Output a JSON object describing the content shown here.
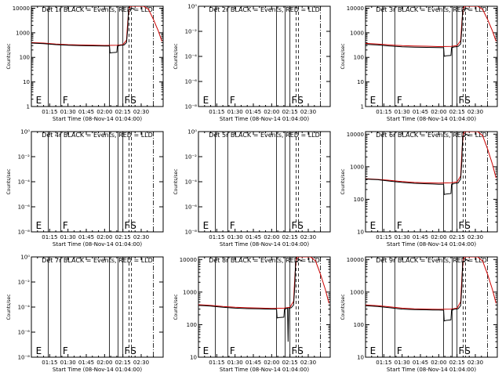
{
  "chart_data": {
    "type": "line",
    "x_ticks": [
      "01:15",
      "01:30",
      "01:45",
      "02:00",
      "02:15",
      "02:30"
    ],
    "x_tick_minutes": [
      15,
      30,
      45,
      60,
      75,
      90
    ],
    "x_range_minutes": [
      0,
      108
    ],
    "xlabel": "Start Time (08-Nov-14 01:04:00)",
    "ylabel": "Counts/sec",
    "series_colors": {
      "events": "#000000",
      "lld": "#cc0000"
    },
    "marker_lines_minutes": {
      "solid": [
        13.8,
        24,
        64,
        71,
        75
      ],
      "dashed": [
        80,
        82
      ],
      "dashdot": [
        100
      ]
    },
    "marker_labels": [
      {
        "text": "E",
        "x_minutes": 3
      },
      {
        "text": "F",
        "x_minutes": 25
      },
      {
        "text": "F",
        "x_minutes": 75.5
      },
      {
        "text": "S",
        "x_minutes": 80.5
      }
    ],
    "panels": [
      {
        "title": "Det 1r BLACK = Events, RED = LLD",
        "has_data": true,
        "yticks": [
          "1",
          "10",
          "100",
          "1000",
          "10000"
        ],
        "ytick_values": [
          1,
          10,
          100,
          1000,
          10000
        ],
        "ylim": [
          1,
          12000
        ],
        "events": {
          "x": [
            0,
            5,
            10,
            20,
            30,
            40,
            50,
            55,
            60,
            64,
            64.5,
            66,
            70,
            70.5,
            71,
            71.5,
            72,
            74,
            76,
            78,
            79,
            79.5,
            80,
            81,
            82,
            83,
            84,
            85
          ],
          "y": [
            380,
            370,
            360,
            330,
            310,
            300,
            295,
            292,
            290,
            288,
            150,
            155,
            160,
            290,
            300,
            290,
            305,
            310,
            320,
            400,
            1500,
            8000,
            9000,
            8500,
            9500,
            10000,
            9000,
            9500
          ]
        },
        "lld": {
          "x": [
            0,
            10,
            20,
            30,
            40,
            50,
            60,
            70,
            75,
            78,
            79,
            80,
            81,
            84,
            88,
            92,
            96,
            100,
            104,
            107
          ],
          "y": [
            400,
            380,
            350,
            330,
            320,
            315,
            305,
            310,
            330,
            500,
            3000,
            9000,
            12000,
            12000,
            12000,
            12000,
            9000,
            3500,
            1200,
            450
          ]
        },
        "markers": [
          "E",
          "F",
          "F",
          "S"
        ]
      },
      {
        "title": "Det 2r BLACK = Events, RED = LLD",
        "has_data": false,
        "yticks": [
          "10⁰",
          "10⁻²",
          "10⁻⁴",
          "10⁻⁶",
          "10⁻⁸"
        ],
        "ytick_values": [
          1,
          0.01,
          0.0001,
          1e-06,
          1e-08
        ],
        "ylim": [
          1e-08,
          1
        ],
        "markers": [
          "E",
          "F",
          "F",
          "S"
        ]
      },
      {
        "title": "Det 3r BLACK = Events, RED = LLD",
        "has_data": true,
        "yticks": [
          "1",
          "10",
          "100",
          "1000",
          "10000"
        ],
        "ytick_values": [
          1,
          10,
          100,
          1000,
          10000
        ],
        "ylim": [
          1,
          12000
        ],
        "events": {
          "x": [
            0,
            5,
            10,
            20,
            30,
            40,
            50,
            55,
            60,
            64,
            64.5,
            66,
            70,
            70.5,
            71,
            71.5,
            72,
            74,
            76,
            78,
            79,
            79.5,
            80,
            81,
            82,
            83,
            84,
            85
          ],
          "y": [
            340,
            330,
            320,
            290,
            270,
            260,
            255,
            252,
            250,
            248,
            110,
            115,
            120,
            250,
            260,
            250,
            265,
            270,
            280,
            350,
            1500,
            8000,
            9000,
            8500,
            9500,
            10000,
            9000,
            9500
          ]
        },
        "lld": {
          "x": [
            0,
            10,
            20,
            30,
            40,
            50,
            60,
            70,
            75,
            78,
            79,
            80,
            81,
            84,
            88,
            92,
            96,
            100,
            104,
            107
          ],
          "y": [
            370,
            350,
            320,
            300,
            290,
            285,
            275,
            280,
            300,
            480,
            3000,
            9000,
            12000,
            12000,
            12000,
            12000,
            9000,
            3500,
            1200,
            450
          ]
        },
        "markers": [
          "E",
          "F",
          "F",
          "S"
        ]
      },
      {
        "title": "Det 4r BLACK = Events, RED = LLD",
        "has_data": false,
        "yticks": [
          "10⁰",
          "10⁻²",
          "10⁻⁴",
          "10⁻⁶",
          "10⁻⁸"
        ],
        "ytick_values": [
          1,
          0.01,
          0.0001,
          1e-06,
          1e-08
        ],
        "ylim": [
          1e-08,
          1
        ],
        "markers": [
          "E",
          "F",
          "F",
          "S"
        ]
      },
      {
        "title": "Det 5r BLACK = Events, RED = LLD",
        "has_data": false,
        "yticks": [
          "10⁰",
          "10⁻²",
          "10⁻⁴",
          "10⁻⁶",
          "10⁻⁸"
        ],
        "ytick_values": [
          1,
          0.01,
          0.0001,
          1e-06,
          1e-08
        ],
        "ylim": [
          1e-08,
          1
        ],
        "markers": [
          "E",
          "F",
          "F",
          "S"
        ]
      },
      {
        "title": "Det 6r BLACK = Events, RED = LLD",
        "has_data": true,
        "yticks": [
          "10",
          "100",
          "1000",
          "10000"
        ],
        "ytick_values": [
          10,
          100,
          1000,
          10000
        ],
        "ylim": [
          10,
          12000
        ],
        "events": {
          "x": [
            0,
            5,
            10,
            20,
            30,
            40,
            50,
            55,
            60,
            64,
            64.5,
            66,
            70,
            70.5,
            71,
            71.5,
            72,
            74,
            76,
            78,
            79,
            79.5,
            80,
            81,
            82,
            83,
            84,
            85
          ],
          "y": [
            420,
            410,
            400,
            360,
            330,
            310,
            300,
            295,
            290,
            288,
            140,
            145,
            150,
            290,
            300,
            290,
            305,
            310,
            320,
            420,
            1500,
            8000,
            9000,
            8500,
            9500,
            10000,
            9000,
            9500
          ]
        },
        "lld": {
          "x": [
            0,
            10,
            20,
            30,
            40,
            50,
            60,
            70,
            75,
            78,
            79,
            80,
            81,
            84,
            88,
            92,
            96,
            100,
            104,
            107
          ],
          "y": [
            430,
            410,
            380,
            350,
            330,
            320,
            315,
            320,
            340,
            520,
            3000,
            9000,
            12000,
            12000,
            12000,
            12000,
            9000,
            3500,
            1200,
            450
          ]
        },
        "markers": [
          "E",
          "F",
          "F",
          "S"
        ]
      },
      {
        "title": "Det 7r BLACK = Events, RED = LLD",
        "has_data": false,
        "yticks": [
          "10⁰",
          "10⁻²",
          "10⁻⁴",
          "10⁻⁶",
          "10⁻⁸"
        ],
        "ytick_values": [
          1,
          0.01,
          0.0001,
          1e-06,
          1e-08
        ],
        "ylim": [
          1e-08,
          1
        ],
        "markers": [
          "E",
          "F",
          "F",
          "S"
        ]
      },
      {
        "title": "Det 8r BLACK = Events, RED = LLD",
        "has_data": true,
        "yticks": [
          "10",
          "100",
          "1000",
          "10000"
        ],
        "ytick_values": [
          10,
          100,
          1000,
          10000
        ],
        "ylim": [
          10,
          12000
        ],
        "events": {
          "x": [
            0,
            5,
            10,
            20,
            30,
            40,
            50,
            55,
            60,
            64,
            64.5,
            66,
            70,
            70.5,
            71,
            71.5,
            72,
            73,
            73.5,
            74,
            76,
            78,
            79,
            79.5,
            80,
            81,
            82,
            83,
            84,
            85
          ],
          "y": [
            390,
            380,
            370,
            340,
            320,
            310,
            305,
            302,
            300,
            298,
            160,
            165,
            170,
            300,
            310,
            300,
            315,
            320,
            30,
            320,
            330,
            400,
            1500,
            8000,
            9000,
            8500,
            9500,
            10000,
            9000,
            9500
          ]
        },
        "lld": {
          "x": [
            0,
            10,
            20,
            30,
            40,
            50,
            60,
            70,
            75,
            78,
            79,
            80,
            81,
            84,
            88,
            92,
            96,
            100,
            104,
            107
          ],
          "y": [
            410,
            390,
            360,
            340,
            330,
            325,
            315,
            320,
            340,
            520,
            3000,
            9000,
            12000,
            12000,
            12000,
            12000,
            9000,
            3500,
            1200,
            450
          ]
        },
        "markers": [
          "E",
          "F",
          "F",
          "S"
        ]
      },
      {
        "title": "Det 9r BLACK = Events, RED = LLD",
        "has_data": true,
        "yticks": [
          "10",
          "100",
          "1000",
          "10000"
        ],
        "ytick_values": [
          10,
          100,
          1000,
          10000
        ],
        "ylim": [
          10,
          12000
        ],
        "events": {
          "x": [
            0,
            5,
            10,
            20,
            30,
            40,
            50,
            55,
            60,
            64,
            64.5,
            66,
            70,
            70.5,
            71,
            71.5,
            72,
            74,
            76,
            78,
            79,
            79.5,
            80,
            81,
            82,
            83,
            84,
            85
          ],
          "y": [
            380,
            370,
            360,
            330,
            300,
            290,
            285,
            282,
            280,
            278,
            130,
            135,
            140,
            280,
            290,
            280,
            295,
            300,
            310,
            380,
            1500,
            8000,
            9000,
            8500,
            9500,
            10000,
            9000,
            9500
          ]
        },
        "lld": {
          "x": [
            0,
            10,
            20,
            30,
            40,
            50,
            60,
            70,
            75,
            78,
            79,
            80,
            81,
            84,
            88,
            92,
            96,
            100,
            104,
            107
          ],
          "y": [
            400,
            380,
            350,
            320,
            305,
            300,
            295,
            300,
            320,
            500,
            3000,
            9000,
            12000,
            12000,
            12000,
            12000,
            9000,
            3500,
            1200,
            450
          ]
        },
        "markers": [
          "E",
          "F",
          "F",
          "S"
        ]
      }
    ]
  }
}
